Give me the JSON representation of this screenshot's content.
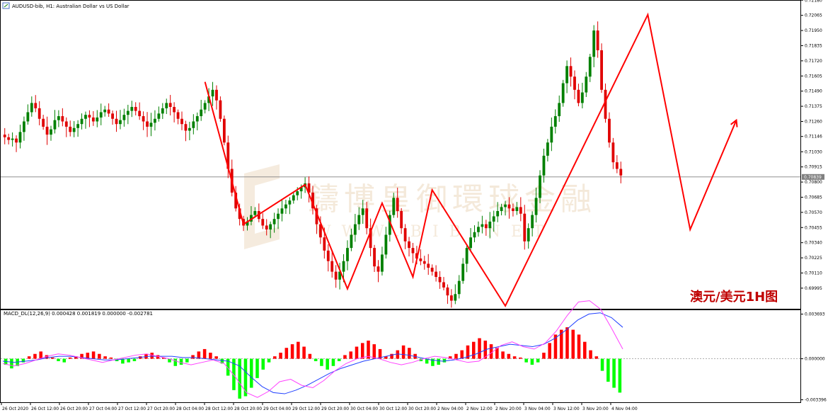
{
  "header": {
    "symbol_line": "AUDUSD-bib, H1:  Australian Dollar vs US Dollar"
  },
  "watermark": {
    "cn": "鑄博皇御環球金融",
    "en": "W W W . B I B . N E T"
  },
  "annotation": "澳元/美元1H图",
  "colors": {
    "bull": "#008000",
    "bear": "#e00000",
    "zigzag": "#ff0000",
    "macd_pos": "#ff0000",
    "macd_neg": "#00ff00",
    "signal_blue": "#2040ff",
    "signal_pink": "#ff40ff",
    "grid": "#808080"
  },
  "chart_data": {
    "type": "candlestick",
    "price_axis": {
      "range": [
        0.6986,
        0.7216
      ],
      "ticks": [
        "0.72180",
        "0.72065",
        "0.71950",
        "0.71835",
        "0.71720",
        "0.71605",
        "0.71490",
        "0.71375",
        "0.71260",
        "0.71146",
        "0.71030",
        "0.70915",
        "0.70800",
        "0.70685",
        "0.70570",
        "0.70455",
        "0.70340",
        "0.70225",
        "0.70110",
        "0.69995"
      ],
      "current_price": "0.70839",
      "current_value": 0.70839
    },
    "time_axis_labels": [
      "26 Oct 2020",
      "26 Oct 12:00",
      "26 Oct 20:00",
      "27 Oct 04:00",
      "27 Oct 12:00",
      "27 Oct 20:00",
      "28 Oct 04:00",
      "28 Oct 12:00",
      "28 Oct 20:00",
      "29 Oct 04:00",
      "29 Oct 12:00",
      "29 Oct 20:00",
      "30 Oct 04:00",
      "30 Oct 12:00",
      "30 Oct 20:00",
      "2 Nov 04:00",
      "2 Nov 12:00",
      "2 Nov 20:00",
      "3 Nov 04:00",
      "3 Nov 12:00",
      "3 Nov 20:00",
      "4 Nov 04:00"
    ],
    "candles_close": [
      0.7114,
      0.7112,
      0.7113,
      0.711,
      0.7118,
      0.7126,
      0.7133,
      0.714,
      0.7136,
      0.7128,
      0.7122,
      0.7116,
      0.712,
      0.7127,
      0.713,
      0.7126,
      0.7122,
      0.7118,
      0.7121,
      0.7124,
      0.7128,
      0.7131,
      0.7129,
      0.7126,
      0.7129,
      0.7133,
      0.7135,
      0.7132,
      0.7128,
      0.7124,
      0.7127,
      0.7131,
      0.7134,
      0.7137,
      0.7134,
      0.713,
      0.7126,
      0.7122,
      0.7125,
      0.7128,
      0.7132,
      0.7136,
      0.714,
      0.7137,
      0.7133,
      0.7128,
      0.7124,
      0.7119,
      0.7121,
      0.7126,
      0.713,
      0.7135,
      0.714,
      0.7145,
      0.715,
      0.7142,
      0.7128,
      0.711,
      0.709,
      0.7072,
      0.706,
      0.7052,
      0.7047,
      0.705,
      0.7055,
      0.7058,
      0.7052,
      0.7047,
      0.7044,
      0.7048,
      0.7052,
      0.7056,
      0.706,
      0.7063,
      0.7066,
      0.707,
      0.7073,
      0.7076,
      0.7079,
      0.7072,
      0.706,
      0.7048,
      0.7038,
      0.7028,
      0.702,
      0.7012,
      0.7006,
      0.7012,
      0.702,
      0.703,
      0.704,
      0.7048,
      0.7055,
      0.706,
      0.7045,
      0.703,
      0.7016,
      0.7012,
      0.7025,
      0.704,
      0.7055,
      0.7068,
      0.7058,
      0.7045,
      0.7035,
      0.703,
      0.7026,
      0.7022,
      0.702,
      0.7018,
      0.7015,
      0.7012,
      0.7008,
      0.7004,
      0.7,
      0.6994,
      0.699,
      0.6995,
      0.7005,
      0.7018,
      0.703,
      0.7038,
      0.7042,
      0.7046,
      0.7048,
      0.7045,
      0.705,
      0.7054,
      0.7058,
      0.7061,
      0.7063,
      0.706,
      0.7058,
      0.7061,
      0.7056,
      0.7035,
      0.7045,
      0.7055,
      0.7068,
      0.7085,
      0.71,
      0.711,
      0.7122,
      0.713,
      0.714,
      0.7155,
      0.7168,
      0.716,
      0.715,
      0.714,
      0.7148,
      0.716,
      0.7175,
      0.7195,
      0.718,
      0.715,
      0.7128,
      0.711,
      0.7095,
      0.709,
      0.7085
    ],
    "zigzag": [
      [
        0.7156,
        0.7048,
        0.7078,
        0.6999,
        0.7064,
        0.7008,
        0.7074,
        0.6986,
        0.7207,
        0.7044,
        0.7127
      ]
    ],
    "macd": {
      "label": "MACD_DL(12,26,9) 0.000428 0.001819 0.000000 -0.002781",
      "axis_ticks": [
        "0.003693",
        "0.000000",
        "-0.003396"
      ],
      "range": [
        -0.0036,
        0.0039
      ],
      "histogram": [
        -0.0005,
        -0.0008,
        -0.0006,
        -0.0003,
        0.0002,
        0.0004,
        0.0006,
        0.0003,
        0.0001,
        -0.0002,
        -0.0003,
        0.0001,
        0.0002,
        0.0004,
        0.0005,
        0.0006,
        0.0004,
        0.0002,
        0.0001,
        -0.0002,
        -0.0004,
        -0.0003,
        -0.0002,
        0.0002,
        0.0004,
        0.0005,
        0.0003,
        0.0001,
        -0.0003,
        -0.0006,
        -0.0005,
        -0.0003,
        0.0003,
        0.0006,
        0.0008,
        0.0005,
        0.0002,
        -0.0004,
        -0.0014,
        -0.0026,
        -0.0033,
        -0.0031,
        -0.0024,
        -0.0016,
        -0.0009,
        -0.0003,
        0.0002,
        0.0005,
        0.0009,
        0.0012,
        0.0014,
        0.001,
        0.0004,
        -0.0002,
        -0.0006,
        -0.0009,
        -0.0006,
        -0.0002,
        0.0003,
        0.0006,
        0.001,
        0.0013,
        0.0015,
        0.0012,
        0.0008,
        0.0002,
        0.0004,
        0.0007,
        0.0011,
        0.0009,
        0.0004,
        -0.0002,
        -0.0004,
        -0.0006,
        -0.0005,
        -0.0003,
        0.0002,
        0.0004,
        0.0007,
        0.0011,
        0.0014,
        0.0017,
        0.0015,
        0.0012,
        0.0009,
        0.0006,
        0.0004,
        0.0002,
        0.0001,
        -0.0003,
        -0.0005,
        -0.0003,
        0.0005,
        0.0013,
        0.002,
        0.0024,
        0.0026,
        0.0024,
        0.002,
        0.0014,
        0.0007,
        0.0002,
        -0.001,
        -0.0019,
        -0.0024,
        -0.0028
      ],
      "signal_blue": [
        -0.0002,
        -0.0003,
        -0.0002,
        -0.0001,
        0.0001,
        0.0002,
        0.0002,
        0.0001,
        0.0,
        -0.0001,
        -0.0001,
        0.0,
        0.0001,
        0.0002,
        0.0002,
        0.0002,
        0.0001,
        0.0001,
        0.0,
        -0.0001,
        -0.0002,
        -0.0006,
        -0.0015,
        -0.0023,
        -0.0028,
        -0.0029,
        -0.0026,
        -0.0022,
        -0.0017,
        -0.0012,
        -0.0008,
        -0.0005,
        -0.0002,
        0.0,
        0.0002,
        0.0004,
        0.0003,
        0.0001,
        -0.0001,
        -0.0002,
        -0.0001,
        0.0001,
        0.0004,
        0.0008,
        0.001,
        0.0012,
        0.0011,
        0.001,
        0.0012,
        0.0017,
        0.0024,
        0.0032,
        0.0037,
        0.0038,
        0.0034,
        0.0026
      ],
      "signal_pink": [
        -0.0004,
        -0.0006,
        -0.0004,
        -0.0001,
        0.0002,
        0.0004,
        0.0003,
        0.0001,
        -0.0001,
        -0.0003,
        -0.0001,
        0.0001,
        0.0003,
        0.0004,
        0.0002,
        0.0,
        -0.0003,
        -0.0005,
        -0.0003,
        -0.0001,
        -0.0004,
        -0.0015,
        -0.0028,
        -0.0032,
        -0.0027,
        -0.0019,
        -0.0017,
        -0.0022,
        -0.0024,
        -0.0018,
        -0.001,
        -0.0004,
        0.0,
        0.0002,
        0.0,
        -0.0003,
        -0.0005,
        -0.0003,
        0.0,
        0.0002,
        0.0001,
        -0.0001,
        -0.0003,
        -0.0002,
        0.0004,
        0.0011,
        0.0014,
        0.001,
        0.0008,
        0.0013,
        0.0023,
        0.0036,
        0.0047,
        0.0048,
        0.0041,
        0.0025,
        0.0008
      ]
    }
  }
}
